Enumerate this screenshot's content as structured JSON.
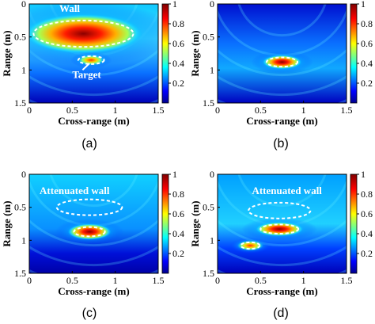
{
  "figure": {
    "panels": [
      {
        "caption": "(a)",
        "xlabel": "Cross-range (m)",
        "ylabel": "Range (m)",
        "xticks": [
          "0",
          "0.5",
          "1",
          "1.5"
        ],
        "yticks": [
          "0",
          "0.5",
          "1",
          "1.5"
        ],
        "colorbar_ticks": [
          "1",
          "0.8",
          "0.6",
          "0.4",
          "0.2"
        ],
        "annotations": [
          {
            "text": "Wall",
            "x_m": 0.35,
            "y_m": 0.12
          },
          {
            "text": "Target",
            "x_m": 0.5,
            "y_m": 1.12
          }
        ],
        "blobs": [
          {
            "x_m": 0.63,
            "y_m": 0.45,
            "rx_m": 0.55,
            "ry_m": 0.2,
            "intensity": 1.0
          },
          {
            "x_m": 0.72,
            "y_m": 0.85,
            "rx_m": 0.12,
            "ry_m": 0.05,
            "intensity": 0.75
          }
        ],
        "dashed_ellipses": [
          {
            "x_m": 0.63,
            "y_m": 0.45,
            "rx_m": 0.58,
            "ry_m": 0.2
          },
          {
            "x_m": 0.72,
            "y_m": 0.85,
            "rx_m": 0.15,
            "ry_m": 0.06
          }
        ]
      },
      {
        "caption": "(b)",
        "xlabel": "Cross-range (m)",
        "ylabel": "Range (m)",
        "xticks": [
          "0",
          "0.5",
          "1",
          "1.5"
        ],
        "yticks": [
          "0",
          "0.5",
          "1",
          "1.5"
        ],
        "colorbar_ticks": [
          "1",
          "0.8",
          "0.6",
          "0.4",
          "0.2"
        ],
        "annotations": [],
        "blobs": [
          {
            "x_m": 0.75,
            "y_m": 0.88,
            "rx_m": 0.18,
            "ry_m": 0.07,
            "intensity": 1.0
          }
        ],
        "dashed_ellipses": [
          {
            "x_m": 0.75,
            "y_m": 0.88,
            "rx_m": 0.18,
            "ry_m": 0.07
          }
        ]
      },
      {
        "caption": "(c)",
        "xlabel": "Cross-range (m)",
        "ylabel": "Range (m)",
        "xticks": [
          "0",
          "0.5",
          "1",
          "1.5"
        ],
        "yticks": [
          "0",
          "0.5",
          "1",
          "1.5"
        ],
        "colorbar_ticks": [
          "1",
          "0.8",
          "0.6",
          "0.4",
          "0.2"
        ],
        "annotations": [
          {
            "text": "Attenuated wall",
            "x_m": 0.12,
            "y_m": 0.3
          }
        ],
        "blobs": [
          {
            "x_m": 0.7,
            "y_m": 0.87,
            "rx_m": 0.2,
            "ry_m": 0.08,
            "intensity": 1.0
          }
        ],
        "dashed_ellipses": [
          {
            "x_m": 0.7,
            "y_m": 0.5,
            "rx_m": 0.38,
            "ry_m": 0.12
          },
          {
            "x_m": 0.7,
            "y_m": 0.87,
            "rx_m": 0.18,
            "ry_m": 0.07
          }
        ]
      },
      {
        "caption": "(d)",
        "xlabel": "Cross-range (m)",
        "ylabel": "Range (m)",
        "xticks": [
          "0",
          "0.5",
          "1",
          "1.5"
        ],
        "yticks": [
          "0",
          "0.5",
          "1",
          "1.5"
        ],
        "colorbar_ticks": [
          "1",
          "0.8",
          "0.6",
          "0.4",
          "0.2"
        ],
        "annotations": [
          {
            "text": "Attenuated wall",
            "x_m": 0.4,
            "y_m": 0.3
          }
        ],
        "blobs": [
          {
            "x_m": 0.72,
            "y_m": 0.83,
            "rx_m": 0.22,
            "ry_m": 0.07,
            "intensity": 1.0
          },
          {
            "x_m": 0.38,
            "y_m": 1.08,
            "rx_m": 0.12,
            "ry_m": 0.05,
            "intensity": 0.65
          }
        ],
        "dashed_ellipses": [
          {
            "x_m": 0.72,
            "y_m": 0.55,
            "rx_m": 0.36,
            "ry_m": 0.12
          },
          {
            "x_m": 0.72,
            "y_m": 0.83,
            "rx_m": 0.22,
            "ry_m": 0.07
          },
          {
            "x_m": 0.38,
            "y_m": 1.08,
            "rx_m": 0.11,
            "ry_m": 0.05
          }
        ]
      }
    ]
  }
}
